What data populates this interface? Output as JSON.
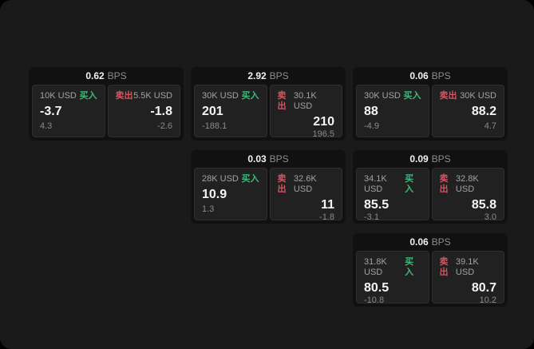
{
  "labels": {
    "bps": "BPS",
    "buy": "买入",
    "sell": "卖出"
  },
  "colors": {
    "buy": "#41b979",
    "sell": "#d8535f",
    "page_bg": "#1a1a1a",
    "card_bg": "#111111",
    "panel_bg": "#212121"
  },
  "cards": [
    {
      "bps": "0.62",
      "buy": {
        "amount": "10K USD",
        "value": "-3.7",
        "delta": "4.3"
      },
      "sell": {
        "amount": "5.5K USD",
        "value": "-1.8",
        "delta": "-2.6"
      }
    },
    {
      "bps": "2.92",
      "buy": {
        "amount": "30K USD",
        "value": "201",
        "delta": "-188.1"
      },
      "sell": {
        "amount": "30.1K USD",
        "value": "210",
        "delta": "196.5"
      }
    },
    {
      "bps": "0.06",
      "buy": {
        "amount": "30K USD",
        "value": "88",
        "delta": "-4.9"
      },
      "sell": {
        "amount": "30K USD",
        "value": "88.2",
        "delta": "4.7"
      }
    },
    {
      "bps": "0.03",
      "buy": {
        "amount": "28K USD",
        "value": "10.9",
        "delta": "1.3"
      },
      "sell": {
        "amount": "32.6K USD",
        "value": "11",
        "delta": "-1.8"
      }
    },
    {
      "bps": "0.09",
      "buy": {
        "amount": "34.1K USD",
        "value": "85.5",
        "delta": "-3.1"
      },
      "sell": {
        "amount": "32.8K USD",
        "value": "85.8",
        "delta": "3.0"
      }
    },
    {
      "bps": "0.06",
      "buy": {
        "amount": "31.8K USD",
        "value": "80.5",
        "delta": "-10.8"
      },
      "sell": {
        "amount": "39.1K USD",
        "value": "80.7",
        "delta": "10.2"
      }
    }
  ]
}
